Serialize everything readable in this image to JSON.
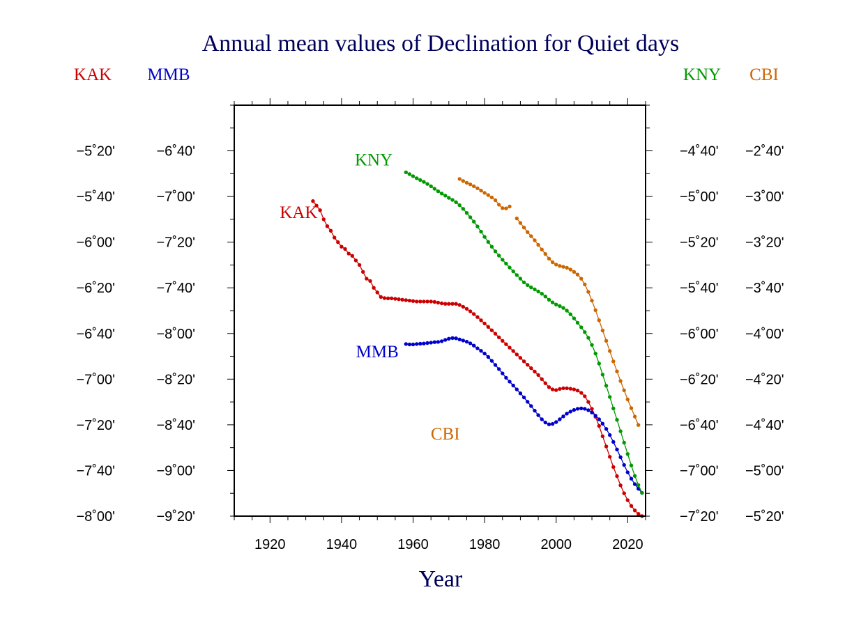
{
  "chart_data": {
    "type": "line",
    "title": "Annual mean values of Declination for Quiet days",
    "xlabel": "Year",
    "xlim": [
      1910,
      2025
    ],
    "x_ticks": [
      1920,
      1940,
      1960,
      1980,
      2000,
      2020
    ],
    "grid": false,
    "axis_groups": [
      {
        "side": "left-outer",
        "series": "KAK",
        "color": "#cc0000",
        "header": "KAK",
        "ticks": [
          "−5˚20'",
          "−5˚40'",
          "−6˚00'",
          "−6˚20'",
          "−6˚40'",
          "−7˚00'",
          "−7˚20'",
          "−7˚40'",
          "−8˚00'"
        ]
      },
      {
        "side": "left-inner",
        "series": "MMB",
        "color": "#0000cc",
        "header": "MMB",
        "ticks": [
          "−6˚40'",
          "−7˚00'",
          "−7˚20'",
          "−7˚40'",
          "−8˚00'",
          "−8˚20'",
          "−8˚40'",
          "−9˚00'",
          "−9˚20'"
        ]
      },
      {
        "side": "right-inner",
        "series": "KNY",
        "color": "#009900",
        "header": "KNY",
        "ticks": [
          "−4˚40'",
          "−5˚00'",
          "−5˚20'",
          "−5˚40'",
          "−6˚00'",
          "−6˚20'",
          "−6˚40'",
          "−7˚00'",
          "−7˚20'"
        ]
      },
      {
        "side": "right-outer",
        "series": "CBI",
        "color": "#cc6600",
        "header": "CBI",
        "ticks": [
          "−2˚40'",
          "−3˚00'",
          "−3˚20'",
          "−3˚40'",
          "−4˚00'",
          "−4˚20'",
          "−4˚40'",
          "−5˚00'",
          "−5˚20'"
        ]
      }
    ],
    "series": [
      {
        "name": "KAK",
        "color": "#cc0000",
        "unit": "arcmin",
        "ylim": [
          -490,
          -310
        ],
        "points": [
          [
            1932,
            -352
          ],
          [
            1933,
            -354
          ],
          [
            1934,
            -356
          ],
          [
            1935,
            -360
          ],
          [
            1936,
            -363
          ],
          [
            1937,
            -365
          ],
          [
            1938,
            -368
          ],
          [
            1939,
            -370
          ],
          [
            1940,
            -372
          ],
          [
            1941,
            -373
          ],
          [
            1942,
            -375
          ],
          [
            1943,
            -376
          ],
          [
            1944,
            -378
          ],
          [
            1945,
            -380
          ],
          [
            1946,
            -383
          ],
          [
            1947,
            -386
          ],
          [
            1948,
            -387
          ],
          [
            1949,
            -390
          ],
          [
            1950,
            -392
          ],
          [
            1951,
            -394
          ],
          [
            1952,
            -394.5
          ],
          [
            1953,
            -394.6
          ],
          [
            1954,
            -394.6
          ],
          [
            1955,
            -394.8
          ],
          [
            1956,
            -395
          ],
          [
            1957,
            -395.2
          ],
          [
            1958,
            -395.4
          ],
          [
            1959,
            -395.6
          ],
          [
            1960,
            -395.8
          ],
          [
            1961,
            -396
          ],
          [
            1962,
            -396
          ],
          [
            1963,
            -396
          ],
          [
            1964,
            -396
          ],
          [
            1965,
            -396
          ],
          [
            1966,
            -396.2
          ],
          [
            1967,
            -396.5
          ],
          [
            1968,
            -396.8
          ],
          [
            1969,
            -397
          ],
          [
            1970,
            -397
          ],
          [
            1971,
            -397
          ],
          [
            1972,
            -397
          ],
          [
            1973,
            -397.5
          ],
          [
            1974,
            -398.3
          ],
          [
            1975,
            -399.2
          ],
          [
            1976,
            -400.3
          ],
          [
            1977,
            -401.5
          ],
          [
            1978,
            -402.8
          ],
          [
            1979,
            -404.2
          ],
          [
            1980,
            -405.6
          ],
          [
            1981,
            -407.1
          ],
          [
            1982,
            -408.6
          ],
          [
            1983,
            -410.1
          ],
          [
            1984,
            -411.7
          ],
          [
            1985,
            -413.2
          ],
          [
            1986,
            -414.7
          ],
          [
            1987,
            -416.2
          ],
          [
            1988,
            -417.7
          ],
          [
            1989,
            -419.2
          ],
          [
            1990,
            -420.7
          ],
          [
            1991,
            -422.2
          ],
          [
            1992,
            -423.7
          ],
          [
            1993,
            -425.2
          ],
          [
            1994,
            -426.7
          ],
          [
            1995,
            -428.2
          ],
          [
            1996,
            -430
          ],
          [
            1997,
            -431.8
          ],
          [
            1998,
            -433.5
          ],
          [
            1999,
            -434.5
          ],
          [
            2000,
            -434.8
          ],
          [
            2001,
            -434.3
          ],
          [
            2002,
            -434
          ],
          [
            2003,
            -434
          ],
          [
            2004,
            -434.2
          ],
          [
            2005,
            -434.5
          ],
          [
            2006,
            -435
          ],
          [
            2007,
            -436
          ],
          [
            2008,
            -437.5
          ],
          [
            2009,
            -440
          ],
          [
            2010,
            -443
          ],
          [
            2011,
            -446.5
          ],
          [
            2012,
            -450.5
          ],
          [
            2013,
            -455
          ],
          [
            2014,
            -459.5
          ],
          [
            2015,
            -464
          ],
          [
            2016,
            -468.5
          ],
          [
            2017,
            -472.5
          ],
          [
            2018,
            -476.5
          ],
          [
            2019,
            -480
          ],
          [
            2020,
            -483
          ],
          [
            2021,
            -485.5
          ],
          [
            2022,
            -487.5
          ],
          [
            2023,
            -489
          ],
          [
            2024,
            -490
          ]
        ]
      },
      {
        "name": "MMB",
        "color": "#0000cc",
        "unit": "arcmin",
        "ylim": [
          -570,
          -390
        ],
        "points": [
          [
            1958,
            -494.6
          ],
          [
            1959,
            -494.8
          ],
          [
            1960,
            -494.8
          ],
          [
            1961,
            -494.6
          ],
          [
            1962,
            -494.5
          ],
          [
            1963,
            -494.4
          ],
          [
            1964,
            -494.2
          ],
          [
            1965,
            -494
          ],
          [
            1966,
            -493.8
          ],
          [
            1967,
            -493.7
          ],
          [
            1968,
            -493.4
          ],
          [
            1969,
            -492.8
          ],
          [
            1970,
            -492.3
          ],
          [
            1971,
            -492
          ],
          [
            1972,
            -492.1
          ],
          [
            1973,
            -492.6
          ],
          [
            1974,
            -493.1
          ],
          [
            1975,
            -493.6
          ],
          [
            1976,
            -494.3
          ],
          [
            1977,
            -495.3
          ],
          [
            1978,
            -496.5
          ],
          [
            1979,
            -497.6
          ],
          [
            1980,
            -498.8
          ],
          [
            1981,
            -500.3
          ],
          [
            1982,
            -502
          ],
          [
            1983,
            -503.8
          ],
          [
            1984,
            -505.6
          ],
          [
            1985,
            -507.5
          ],
          [
            1986,
            -509.4
          ],
          [
            1987,
            -511.1
          ],
          [
            1988,
            -512.8
          ],
          [
            1989,
            -514.5
          ],
          [
            1990,
            -516.2
          ],
          [
            1991,
            -518
          ],
          [
            1992,
            -519.9
          ],
          [
            1993,
            -521.8
          ],
          [
            1994,
            -523.8
          ],
          [
            1995,
            -525.8
          ],
          [
            1996,
            -527.6
          ],
          [
            1997,
            -529
          ],
          [
            1998,
            -529.8
          ],
          [
            1999,
            -529.6
          ],
          [
            2000,
            -528.8
          ],
          [
            2001,
            -527.6
          ],
          [
            2002,
            -526.3
          ],
          [
            2003,
            -525.1
          ],
          [
            2004,
            -524.2
          ],
          [
            2005,
            -523.5
          ],
          [
            2006,
            -523
          ],
          [
            2007,
            -522.8
          ],
          [
            2008,
            -523
          ],
          [
            2009,
            -523.6
          ],
          [
            2010,
            -524.6
          ],
          [
            2011,
            -526
          ],
          [
            2012,
            -527.6
          ],
          [
            2013,
            -529.5
          ],
          [
            2014,
            -531.8
          ],
          [
            2015,
            -534.5
          ],
          [
            2016,
            -537.5
          ],
          [
            2017,
            -540.8
          ],
          [
            2018,
            -544.2
          ],
          [
            2019,
            -547.6
          ],
          [
            2020,
            -550.8
          ],
          [
            2021,
            -553.6
          ],
          [
            2022,
            -556
          ],
          [
            2023,
            -558
          ],
          [
            2024,
            -559.8
          ]
        ]
      },
      {
        "name": "KNY",
        "color": "#009900",
        "unit": "arcmin",
        "ylim": [
          -450,
          -270
        ],
        "points": [
          [
            1958,
            -299.4
          ],
          [
            1959,
            -300.2
          ],
          [
            1960,
            -301.1
          ],
          [
            1961,
            -302
          ],
          [
            1962,
            -302.8
          ],
          [
            1963,
            -303.6
          ],
          [
            1964,
            -304.5
          ],
          [
            1965,
            -305.5
          ],
          [
            1966,
            -306.6
          ],
          [
            1967,
            -307.7
          ],
          [
            1968,
            -308.7
          ],
          [
            1969,
            -309.6
          ],
          [
            1970,
            -310.6
          ],
          [
            1971,
            -311.5
          ],
          [
            1972,
            -312.5
          ],
          [
            1973,
            -313.8
          ],
          [
            1974,
            -315.4
          ],
          [
            1975,
            -317.2
          ],
          [
            1976,
            -319.1
          ],
          [
            1977,
            -321
          ],
          [
            1978,
            -323.1
          ],
          [
            1979,
            -325.4
          ],
          [
            1980,
            -327.7
          ],
          [
            1981,
            -329.9
          ],
          [
            1982,
            -332
          ],
          [
            1983,
            -334
          ],
          [
            1984,
            -335.9
          ],
          [
            1985,
            -337.7
          ],
          [
            1986,
            -339.4
          ],
          [
            1987,
            -341.1
          ],
          [
            1988,
            -342.8
          ],
          [
            1989,
            -344.4
          ],
          [
            1990,
            -346
          ],
          [
            1991,
            -347.6
          ],
          [
            1992,
            -348.8
          ],
          [
            1993,
            -349.8
          ],
          [
            1994,
            -350.7
          ],
          [
            1995,
            -351.6
          ],
          [
            1996,
            -352.6
          ],
          [
            1997,
            -353.8
          ],
          [
            1998,
            -355.2
          ],
          [
            1999,
            -356.4
          ],
          [
            2000,
            -357.3
          ],
          [
            2001,
            -358
          ],
          [
            2002,
            -358.8
          ],
          [
            2003,
            -360
          ],
          [
            2004,
            -361.6
          ],
          [
            2005,
            -363.4
          ],
          [
            2006,
            -365.3
          ],
          [
            2007,
            -367.3
          ],
          [
            2008,
            -369.4
          ],
          [
            2009,
            -371.9
          ],
          [
            2010,
            -375
          ],
          [
            2011,
            -378.8
          ],
          [
            2012,
            -383.2
          ],
          [
            2013,
            -388
          ],
          [
            2014,
            -392.9
          ],
          [
            2015,
            -397.8
          ],
          [
            2016,
            -402.8
          ],
          [
            2017,
            -407.8
          ],
          [
            2018,
            -412.8
          ],
          [
            2019,
            -417.8
          ],
          [
            2020,
            -422.8
          ],
          [
            2021,
            -427.8
          ],
          [
            2022,
            -432.4
          ],
          [
            2023,
            -436.4
          ],
          [
            2024,
            -439.8
          ]
        ]
      },
      {
        "name": "CBI",
        "color": "#cc6600",
        "unit": "arcmin",
        "ylim": [
          -330,
          -150
        ],
        "points": [
          [
            1973,
            -182.3
          ],
          [
            1974,
            -183.2
          ],
          [
            1975,
            -184
          ],
          [
            1976,
            -184.7
          ],
          [
            1977,
            -185.5
          ],
          [
            1978,
            -186.4
          ],
          [
            1979,
            -187.4
          ],
          [
            1980,
            -188.4
          ],
          [
            1981,
            -189.4
          ],
          [
            1982,
            -190.4
          ],
          [
            1983,
            -191.6
          ],
          [
            1984,
            -193.6
          ],
          [
            1985,
            -195.1
          ],
          [
            1986,
            -195.2
          ],
          [
            1987,
            -194.4
          ],
          [
            1989,
            -199.6
          ],
          [
            1990,
            -201.6
          ],
          [
            1991,
            -203.6
          ],
          [
            1992,
            -205.6
          ],
          [
            1993,
            -207.4
          ],
          [
            1994,
            -209.2
          ],
          [
            1995,
            -211.2
          ],
          [
            1996,
            -213.2
          ],
          [
            1997,
            -215.2
          ],
          [
            1998,
            -217.2
          ],
          [
            1999,
            -218.8
          ],
          [
            2000,
            -219.8
          ],
          [
            2001,
            -220.4
          ],
          [
            2002,
            -220.8
          ],
          [
            2003,
            -221.2
          ],
          [
            2004,
            -222
          ],
          [
            2005,
            -223
          ],
          [
            2006,
            -224.2
          ],
          [
            2007,
            -226
          ],
          [
            2008,
            -228.5
          ],
          [
            2009,
            -231.8
          ],
          [
            2010,
            -235.6
          ],
          [
            2011,
            -239.8
          ],
          [
            2012,
            -244.2
          ],
          [
            2013,
            -248.7
          ],
          [
            2014,
            -253.2
          ],
          [
            2015,
            -257.7
          ],
          [
            2016,
            -262.2
          ],
          [
            2017,
            -266.6
          ],
          [
            2018,
            -270.8
          ],
          [
            2019,
            -274.9
          ],
          [
            2020,
            -278.9
          ],
          [
            2021,
            -282.7
          ],
          [
            2022,
            -286.4
          ],
          [
            2023,
            -290.1
          ]
        ]
      }
    ],
    "labels": [
      {
        "text": "KAK",
        "color": "#cc0000",
        "near": [
          1928,
          -357
        ]
      },
      {
        "text": "MMB",
        "color": "#0000cc",
        "near": [
          1950,
          -498
        ]
      },
      {
        "text": "KNY",
        "color": "#009900",
        "near": [
          1949,
          -294
        ]
      },
      {
        "text": "CBI",
        "color": "#cc6600",
        "near": [
          1969,
          -294
        ]
      }
    ]
  }
}
